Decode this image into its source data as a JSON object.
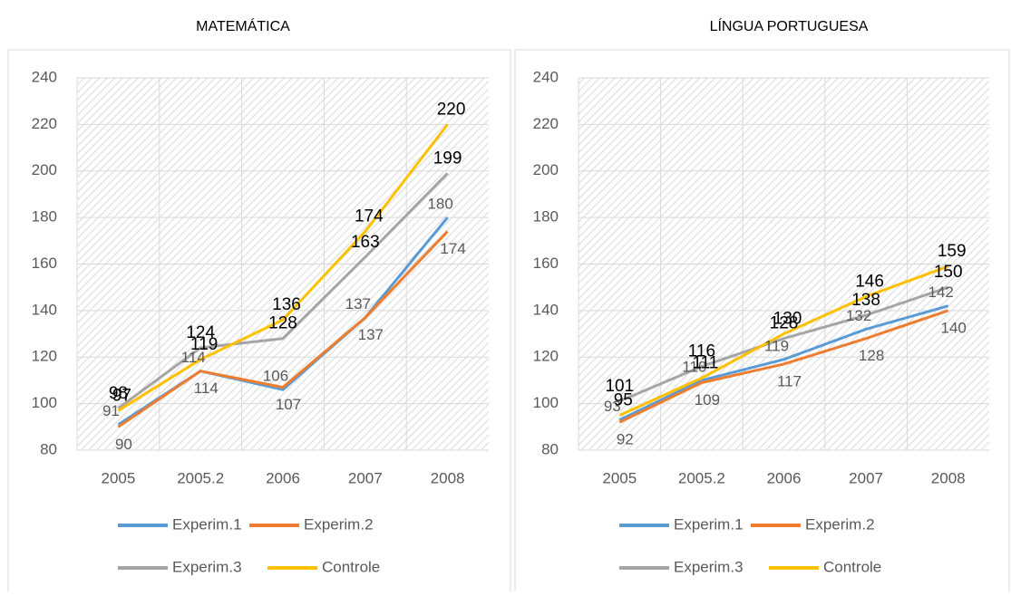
{
  "chart_data": [
    {
      "type": "line",
      "title": "MATEMÁTICA",
      "categories": [
        "2005",
        "2005.2",
        "2006",
        "2007",
        "2008"
      ],
      "ylim": [
        80,
        240
      ],
      "yticks": [
        80,
        100,
        120,
        140,
        160,
        180,
        200,
        220,
        240
      ],
      "grid": true,
      "series": [
        {
          "name": "Experim.1",
          "color": "#5b9bd5",
          "values": [
            91,
            114,
            106,
            137,
            180
          ]
        },
        {
          "name": "Experim.2",
          "color": "#ed7d31",
          "values": [
            90,
            114,
            107,
            137,
            174
          ]
        },
        {
          "name": "Experim.3",
          "color": "#a5a5a5",
          "values": [
            98,
            124,
            128,
            163,
            199
          ]
        },
        {
          "name": "Controle",
          "color": "#ffc000",
          "values": [
            97,
            119,
            136,
            174,
            220
          ]
        }
      ]
    },
    {
      "type": "line",
      "title": "LÍNGUA PORTUGUESA",
      "categories": [
        "2005",
        "2005.2",
        "2006",
        "2007",
        "2008"
      ],
      "ylim": [
        80,
        240
      ],
      "yticks": [
        80,
        100,
        120,
        140,
        160,
        180,
        200,
        220,
        240
      ],
      "grid": true,
      "series": [
        {
          "name": "Experim.1",
          "color": "#5b9bd5",
          "values": [
            93,
            110,
            119,
            132,
            142
          ]
        },
        {
          "name": "Experim.2",
          "color": "#ed7d31",
          "values": [
            92,
            109,
            117,
            128,
            140
          ]
        },
        {
          "name": "Experim.3",
          "color": "#a5a5a5",
          "values": [
            101,
            116,
            128,
            138,
            150
          ]
        },
        {
          "name": "Controle",
          "color": "#ffc000",
          "values": [
            95,
            111,
            130,
            146,
            159
          ]
        }
      ]
    }
  ]
}
